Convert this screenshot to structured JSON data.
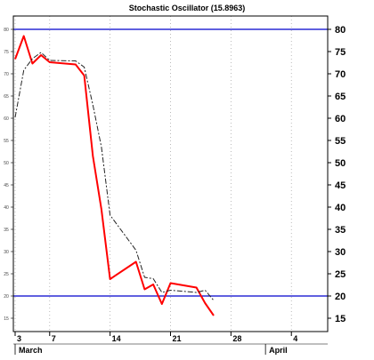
{
  "chart_data": {
    "type": "line",
    "title": "Stochastic Oscillator (15.8963)",
    "xlabel": "",
    "ylabel": "",
    "ylim": [
      12,
      83
    ],
    "y_ticks": [
      15,
      20,
      25,
      30,
      35,
      40,
      45,
      50,
      55,
      60,
      65,
      70,
      75,
      80
    ],
    "x_ticks": [
      {
        "label": "3",
        "date": "2008-03-03"
      },
      {
        "label": "7",
        "date": "2008-03-07"
      },
      {
        "label": "14",
        "date": "2008-03-14"
      },
      {
        "label": "21",
        "date": "2008-03-21"
      },
      {
        "label": "28",
        "date": "2008-03-28"
      },
      {
        "label": "4",
        "date": "2008-04-04"
      }
    ],
    "month_labels": [
      {
        "label": "March",
        "date": "2008-03-03"
      },
      {
        "label": "April",
        "date": "2008-04-01"
      }
    ],
    "x_range": [
      "2008-03-03",
      "2008-04-08"
    ],
    "reference_lines": [
      80,
      20
    ],
    "grid": true,
    "colors": {
      "k": "#ff0000",
      "d": "#222222",
      "ref": "#0000cc",
      "grid": "#aaaaaa"
    },
    "series": [
      {
        "style": "solid",
        "x": [
          "2008-03-03",
          "2008-03-04",
          "2008-03-05",
          "2008-03-06",
          "2008-03-07",
          "2008-03-10",
          "2008-03-11",
          "2008-03-12",
          "2008-03-13",
          "2008-03-14",
          "2008-03-17",
          "2008-03-18",
          "2008-03-19",
          "2008-03-20",
          "2008-03-21",
          "2008-03-24",
          "2008-03-25",
          "2008-03-26"
        ],
        "values": [
          73.3,
          78.5,
          72.3,
          74.2,
          72.6,
          72.1,
          69.6,
          51.5,
          39.5,
          23.8,
          27.7,
          21.5,
          22.6,
          18.2,
          22.9,
          21.9,
          18.4,
          15.6
        ]
      },
      {
        "style": "dashed",
        "x": [
          "2008-03-03",
          "2008-03-04",
          "2008-03-05",
          "2008-03-06",
          "2008-03-07",
          "2008-03-10",
          "2008-03-11",
          "2008-03-12",
          "2008-03-13",
          "2008-03-14",
          "2008-03-17",
          "2008-03-18",
          "2008-03-19",
          "2008-03-20",
          "2008-03-21",
          "2008-03-24",
          "2008-03-25",
          "2008-03-26"
        ],
        "values": [
          60.2,
          70.8,
          73.4,
          74.8,
          73.0,
          72.9,
          71.5,
          63.0,
          53.5,
          38.2,
          30.3,
          24.2,
          23.9,
          20.8,
          21.3,
          20.8,
          21.3,
          19.0
        ]
      }
    ]
  }
}
